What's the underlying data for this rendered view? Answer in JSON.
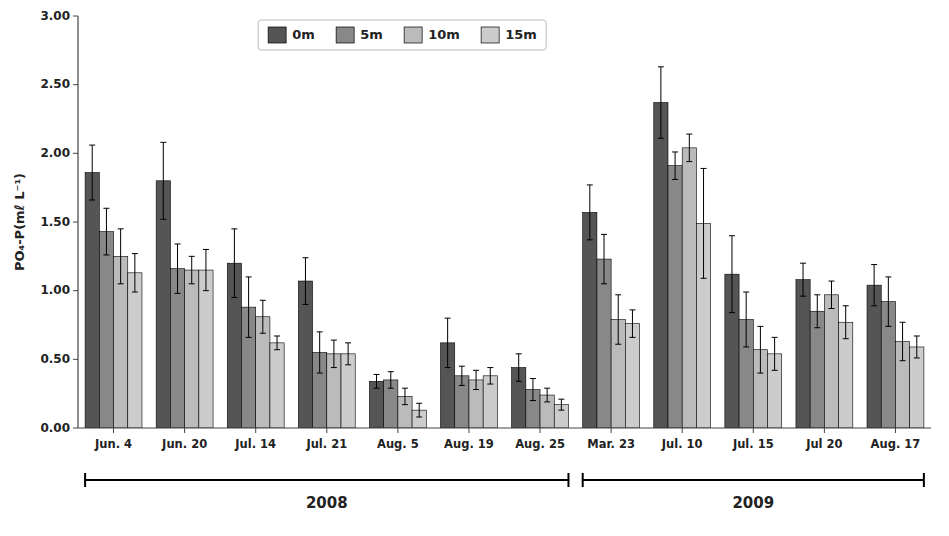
{
  "chart_data": {
    "type": "bar",
    "y_label": "PO₄-P(mℓ L⁻¹)",
    "categories": [
      "Jun. 4",
      "Jun. 20",
      "Jul. 14",
      "Jul. 21",
      "Aug. 5",
      "Aug. 19",
      "Aug. 25",
      "Mar. 23",
      "Jul. 10",
      "Jul. 15",
      "Jul 20",
      "Aug. 17"
    ],
    "series": [
      {
        "name": "0m",
        "color": "#555555",
        "values": [
          1.86,
          1.8,
          1.2,
          1.07,
          0.34,
          0.62,
          0.44,
          1.57,
          2.37,
          1.12,
          1.08,
          1.04
        ],
        "errors": [
          0.2,
          0.28,
          0.25,
          0.17,
          0.05,
          0.18,
          0.1,
          0.2,
          0.26,
          0.28,
          0.12,
          0.15
        ]
      },
      {
        "name": "5m",
        "color": "#888888",
        "values": [
          1.43,
          1.16,
          0.88,
          0.55,
          0.35,
          0.38,
          0.28,
          1.23,
          1.91,
          0.79,
          0.85,
          0.92
        ],
        "errors": [
          0.17,
          0.18,
          0.22,
          0.15,
          0.06,
          0.07,
          0.08,
          0.18,
          0.1,
          0.2,
          0.12,
          0.18
        ]
      },
      {
        "name": "10m",
        "color": "#bbbbbb",
        "values": [
          1.25,
          1.15,
          0.81,
          0.54,
          0.23,
          0.35,
          0.24,
          0.79,
          2.04,
          0.57,
          0.97,
          0.63
        ],
        "errors": [
          0.2,
          0.1,
          0.12,
          0.1,
          0.06,
          0.07,
          0.05,
          0.18,
          0.1,
          0.17,
          0.1,
          0.14
        ]
      },
      {
        "name": "15m",
        "color": "#cccccc",
        "values": [
          1.13,
          1.15,
          0.62,
          0.54,
          0.13,
          0.38,
          0.17,
          0.76,
          1.49,
          0.54,
          0.77,
          0.59
        ],
        "errors": [
          0.14,
          0.15,
          0.05,
          0.08,
          0.05,
          0.06,
          0.04,
          0.1,
          0.4,
          0.12,
          0.12,
          0.08
        ]
      }
    ],
    "ylim": [
      0.0,
      3.0
    ],
    "yticks": [
      {
        "value": 0.0,
        "label": "0.00"
      },
      {
        "value": 0.5,
        "label": "0.50"
      },
      {
        "value": 1.0,
        "label": "1.00"
      },
      {
        "value": 1.5,
        "label": "1.50"
      },
      {
        "value": 2.0,
        "label": "2.00"
      },
      {
        "value": 2.5,
        "label": "2.50"
      },
      {
        "value": 3.0,
        "label": "3.00"
      }
    ],
    "annotations": [
      {
        "text": "2008",
        "start": "Jun. 4",
        "end": "Aug. 25"
      },
      {
        "text": "2009",
        "start": "Mar. 23",
        "end": "Aug. 17"
      }
    ],
    "legend": "top",
    "grid": false
  }
}
